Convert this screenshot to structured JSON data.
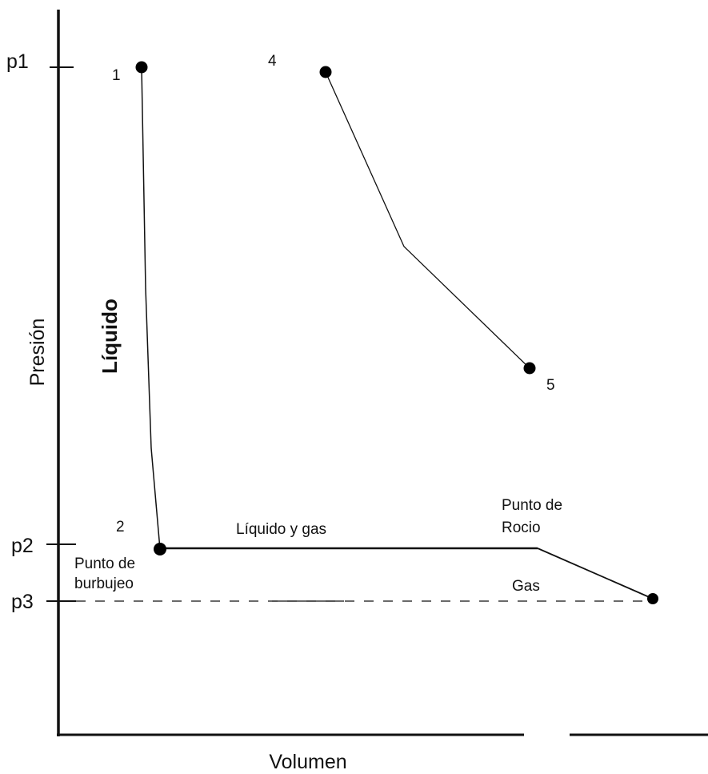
{
  "axes": {
    "x_label": "Volumen",
    "y_label": "Presión"
  },
  "ticks": {
    "p1": "p1",
    "p2": "p2",
    "p3": "p3"
  },
  "points": {
    "p1": "1",
    "p2": "2",
    "p4": "4",
    "p5": "5"
  },
  "regions": {
    "liquid": "Líquido",
    "liquid_gas": "Líquido y gas",
    "gas": "Gas"
  },
  "annotations": {
    "bubble_line1": "Punto de",
    "bubble_line2": "burbujeo",
    "dew_line1": "Punto de",
    "dew_line2": "Rocio"
  }
}
